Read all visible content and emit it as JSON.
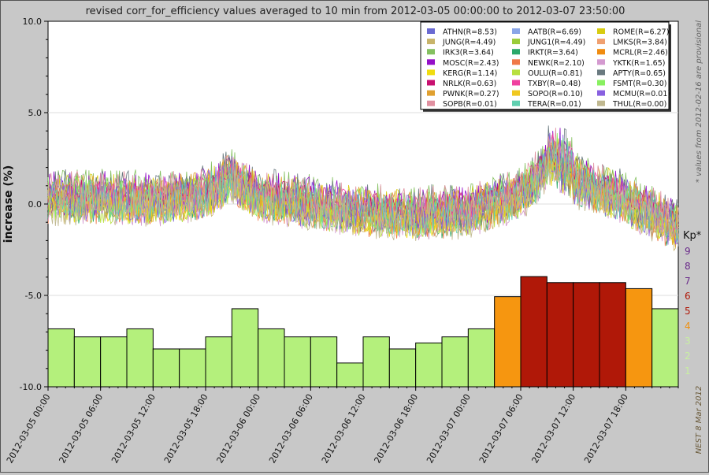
{
  "chart_data": {
    "type": "line",
    "title": "revised corr_for_efficiency values averaged to 10 min from 2012-03-05 00:00:00 to 2012-03-07 23:50:00",
    "ylabel": "increase (%)",
    "xlabel": "",
    "ylim": [
      -10,
      10
    ],
    "y_ticks": [
      "10.0",
      "5.0",
      "0.0",
      "-5.0",
      "-10.0"
    ],
    "x_ticks": [
      "2012-03-05 00:00",
      "2012-03-05 06:00",
      "2012-03-05 12:00",
      "2012-03-05 18:00",
      "2012-03-06 00:00",
      "2012-03-06 06:00",
      "2012-03-06 12:00",
      "2012-03-06 18:00",
      "2012-03-07 00:00",
      "2012-03-07 06:00",
      "2012-03-07 12:00",
      "2012-03-07 18:00"
    ],
    "x_range_hours": [
      0,
      72
    ],
    "grid": true,
    "legend_position": "top-right",
    "side_note": "* values from 2012-02-16 are provisional",
    "credit": "NEST  8 Mar 2012",
    "mean_profile": {
      "hours": [
        0,
        6,
        12,
        18,
        21,
        24,
        30,
        36,
        42,
        48,
        54,
        57,
        60,
        66,
        72
      ],
      "values": [
        0.3,
        0.3,
        0.2,
        0.5,
        1.5,
        0.4,
        0.0,
        -0.4,
        -0.6,
        -0.4,
        0.5,
        2.0,
        1.3,
        0.2,
        -1.3
      ]
    },
    "series": [
      {
        "name": "ATHN(R=8.53)",
        "color": "#6a6ad2"
      },
      {
        "name": "AATB(R=6.69)",
        "color": "#8aa6e8"
      },
      {
        "name": "ROME(R=6.27)",
        "color": "#d8cc10"
      },
      {
        "name": "JUNG(R=4.49)",
        "color": "#c8b46a"
      },
      {
        "name": "JUNG1(R=4.49)",
        "color": "#9acc3a"
      },
      {
        "name": "LMKS(R=3.84)",
        "color": "#f0a070"
      },
      {
        "name": "IRK3(R=3.64)",
        "color": "#84c060"
      },
      {
        "name": "IRKT(R=3.64)",
        "color": "#2ca86a"
      },
      {
        "name": "MCRL(R=2.46)",
        "color": "#f08c10"
      },
      {
        "name": "MOSC(R=2.43)",
        "color": "#9410c8"
      },
      {
        "name": "NEWK(R=2.10)",
        "color": "#f07848"
      },
      {
        "name": "YKTK(R=1.65)",
        "color": "#d49ad0"
      },
      {
        "name": "KERG(R=1.14)",
        "color": "#f0dc10"
      },
      {
        "name": "OULU(R=0.81)",
        "color": "#b8e040"
      },
      {
        "name": "APTY(R=0.65)",
        "color": "#6a7a80"
      },
      {
        "name": "NRLK(R=0.63)",
        "color": "#c81070"
      },
      {
        "name": "TXBY(R=0.48)",
        "color": "#f040a0"
      },
      {
        "name": "FSMT(R=0.30)",
        "color": "#88f060"
      },
      {
        "name": "PWNK(R=0.27)",
        "color": "#e0a030"
      },
      {
        "name": "SOPO(R=0.10)",
        "color": "#f0c820"
      },
      {
        "name": "MCMU(R=0.01)",
        "color": "#8860e0"
      },
      {
        "name": "SOPB(R=0.01)",
        "color": "#e090a0"
      },
      {
        "name": "TERA(R=0.01)",
        "color": "#60d0b0"
      },
      {
        "name": "THUL(R=0.00)",
        "color": "#c0b890"
      }
    ],
    "kp": {
      "label": "Kp*",
      "scale_labels": [
        "9",
        "8",
        "7",
        "6",
        "5",
        "4",
        "3",
        "2",
        "1"
      ],
      "scale_colors": [
        "#6a2a8a",
        "#6a2a8a",
        "#6a2a8a",
        "#b01808",
        "#b01808",
        "#f09010",
        "#c8f0a0",
        "#c8f0a0",
        "#c8f0a0"
      ],
      "values": [
        2.7,
        2.3,
        2.3,
        2.7,
        1.7,
        1.7,
        2.3,
        3.7,
        2.7,
        2.3,
        2.3,
        1.0,
        2.3,
        1.7,
        2.0,
        2.3,
        2.7,
        4.3,
        5.3,
        5.0,
        5.0,
        5.0,
        4.7,
        3.7
      ],
      "colors": {
        "quiet": "#b4f07c",
        "moderate": "#f69610",
        "storm": "#b01808"
      }
    }
  }
}
